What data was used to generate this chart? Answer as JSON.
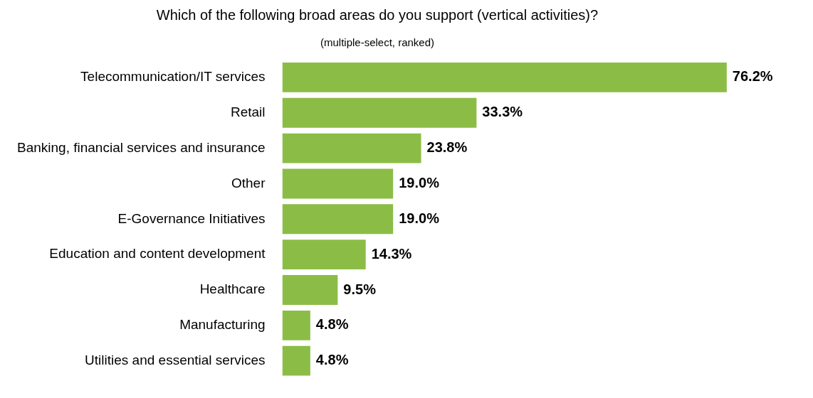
{
  "chart_data": {
    "type": "bar",
    "orientation": "horizontal",
    "title": "Which of the following broad areas do you support (vertical activities)?",
    "subtitle": "(multiple-select, ranked)",
    "categories": [
      "Telecommunication/IT services",
      "Retail",
      "Banking, financial services and insurance",
      "Other",
      "E-Governance Initiatives",
      "Education and content development",
      "Healthcare",
      "Manufacturing",
      "Utilities and essential services"
    ],
    "values": [
      76.2,
      33.3,
      23.8,
      19.0,
      19.0,
      14.3,
      9.5,
      4.8,
      4.8
    ],
    "value_labels": [
      "76.2%",
      "33.3%",
      "23.8%",
      "19.0%",
      "19.0%",
      "14.3%",
      "9.5%",
      "4.8%",
      "4.8%"
    ],
    "color": "#8bbd46"
  }
}
